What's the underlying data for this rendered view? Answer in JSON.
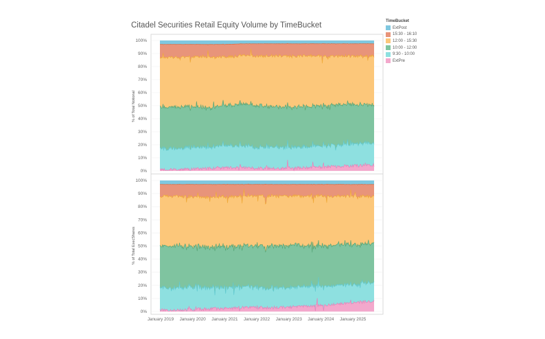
{
  "page": {
    "title": "Citadel Securities Retail Equity Volume by TimeBucket"
  },
  "legend": {
    "title": "TimeBucket",
    "items": [
      {
        "label": "ExtPost",
        "color": "#7fc8e0"
      },
      {
        "label": "15:30 - 16:10",
        "color": "#e8947a"
      },
      {
        "label": "12:00 - 15:30",
        "color": "#fcc77a"
      },
      {
        "label": "10:00 - 12:00",
        "color": "#7fc4a0"
      },
      {
        "label": "9:30 - 10:00",
        "color": "#8ee0e0"
      },
      {
        "label": "ExtPre",
        "color": "#f3a8cc"
      }
    ]
  },
  "chart_data": [
    {
      "type": "area",
      "stacked": true,
      "title": "Citadel Securities Retail Equity Volume by TimeBucket",
      "ylabel": "% of Total Notional",
      "xlabel": "",
      "ylim": [
        0,
        100
      ],
      "yticks": [
        "0%",
        "10%",
        "20%",
        "30%",
        "40%",
        "50%",
        "60%",
        "70%",
        "80%",
        "90%",
        "100%"
      ],
      "x": [
        "Jan 2019",
        "Jul 2019",
        "Jan 2020",
        "Jul 2020",
        "Jan 2021",
        "Jul 2021",
        "Jan 2022",
        "Jul 2022",
        "Jan 2023",
        "Jul 2023",
        "Jan 2024",
        "Jul 2024",
        "Jan 2025",
        "Jul 2025"
      ],
      "series": [
        {
          "name": "ExtPre",
          "color": "#f3a8cc",
          "boundary_color": "#e87ab5",
          "values": [
            1,
            1,
            1.5,
            2,
            2.5,
            2.5,
            2,
            2,
            2,
            2.5,
            3,
            3.5,
            4,
            4.5
          ]
        },
        {
          "name": "9:30 - 10:00",
          "color": "#8ee0e0",
          "boundary_color": "#5cc8d0",
          "values": [
            16,
            16,
            17,
            16,
            17,
            17,
            16,
            16,
            16,
            16,
            16,
            16.5,
            17,
            16.5
          ]
        },
        {
          "name": "10:00 - 12:00",
          "color": "#7fc4a0",
          "boundary_color": "#4aa070",
          "values": [
            32,
            32,
            31,
            30,
            31,
            32,
            32,
            31,
            31,
            31,
            31,
            31,
            30,
            30
          ]
        },
        {
          "name": "12:00 - 15:30",
          "color": "#fcc77a",
          "boundary_color": "#f0a830",
          "values": [
            38,
            38,
            38,
            39,
            37,
            37,
            38,
            39,
            39,
            38.5,
            38,
            37,
            37,
            37
          ]
        },
        {
          "name": "15:30 - 16:10",
          "color": "#e8947a",
          "boundary_color": "#e06030",
          "values": [
            10,
            10,
            9.5,
            10,
            9.5,
            9,
            9.5,
            9.5,
            9.5,
            9.5,
            9.5,
            9.5,
            9.5,
            9.5
          ]
        },
        {
          "name": "ExtPost",
          "color": "#7fc8e0",
          "boundary_color": "#7fc8e0",
          "values": [
            3,
            3,
            3,
            3,
            3,
            2.5,
            2.5,
            2.5,
            2.5,
            2.5,
            2.5,
            2.5,
            2.5,
            2.5
          ]
        }
      ]
    },
    {
      "type": "area",
      "stacked": true,
      "title": "",
      "ylabel": "% of Total ExecShares",
      "xlabel": "",
      "ylim": [
        0,
        100
      ],
      "yticks": [
        "0%",
        "10%",
        "20%",
        "30%",
        "40%",
        "50%",
        "60%",
        "70%",
        "80%",
        "90%",
        "100%"
      ],
      "x": [
        "Jan 2019",
        "Jul 2019",
        "Jan 2020",
        "Jul 2020",
        "Jan 2021",
        "Jul 2021",
        "Jan 2022",
        "Jul 2022",
        "Jan 2023",
        "Jul 2023",
        "Jan 2024",
        "Jul 2024",
        "Jan 2025",
        "Jul 2025"
      ],
      "xticks": [
        "January 2019",
        "January 2020",
        "January 2021",
        "January 2022",
        "January 2023",
        "January 2024",
        "January 2025"
      ],
      "series": [
        {
          "name": "ExtPre",
          "color": "#f3a8cc",
          "boundary_color": "#e87ab5",
          "values": [
            1,
            1,
            1.5,
            2,
            2.5,
            3,
            3,
            3,
            3.5,
            4,
            5,
            6,
            7,
            8
          ]
        },
        {
          "name": "9:30 - 10:00",
          "color": "#8ee0e0",
          "boundary_color": "#5cc8d0",
          "values": [
            17,
            17,
            17,
            16,
            16,
            16,
            15,
            15,
            15,
            15,
            15,
            14,
            14,
            14
          ]
        },
        {
          "name": "10:00 - 12:00",
          "color": "#7fc4a0",
          "boundary_color": "#4aa070",
          "values": [
            32,
            32,
            31,
            31,
            31,
            31,
            32,
            32,
            32,
            31,
            31,
            31,
            30,
            30
          ]
        },
        {
          "name": "12:00 - 15:30",
          "color": "#fcc77a",
          "boundary_color": "#f0a830",
          "values": [
            38,
            38,
            38,
            38,
            38,
            38,
            38,
            38,
            37.5,
            38,
            37,
            37,
            37,
            36
          ]
        },
        {
          "name": "15:30 - 16:10",
          "color": "#e8947a",
          "boundary_color": "#e06030",
          "values": [
            9,
            9,
            9.5,
            10,
            9.5,
            9,
            9,
            9,
            9,
            9,
            9,
            9,
            9,
            9
          ]
        },
        {
          "name": "ExtPost",
          "color": "#7fc8e0",
          "boundary_color": "#7fc8e0",
          "values": [
            3,
            3,
            3,
            3,
            3,
            3,
            3,
            3,
            3,
            3,
            3,
            3,
            3,
            3
          ]
        }
      ]
    }
  ]
}
